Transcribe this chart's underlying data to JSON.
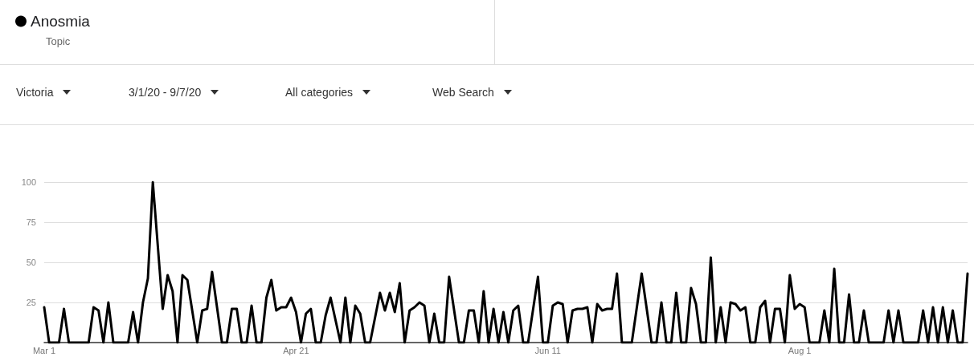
{
  "chart_data": {
    "type": "line",
    "subtitle": "Topic",
    "annotations": [
      "Victoria",
      "3/1/20 - 9/7/20",
      "All categories",
      "Web Search"
    ],
    "x": [
      "--03-01",
      "--03-02",
      "--03-04",
      "--03-05",
      "--03-06",
      "--03-10",
      "--03-11",
      "--03-12",
      "--03-13",
      "--03-14",
      "--03-15",
      "--03-18",
      "--03-19",
      "--03-20",
      "--03-21",
      "--03-22",
      "--03-23",
      "--03-25",
      "--03-26",
      "--03-27",
      "--03-28",
      "--03-29",
      "--03-30",
      "--04-01",
      "--04-02",
      "--04-03",
      "--04-04",
      "--04-06",
      "--04-07",
      "--04-08",
      "--04-09",
      "--04-10",
      "--04-11",
      "--04-12",
      "--04-13",
      "--04-14",
      "--04-15",
      "--04-16",
      "--04-17",
      "--04-18",
      "--04-19",
      "--04-20",
      "--04-21",
      "--04-22",
      "--04-23",
      "--04-24",
      "--04-25",
      "--04-26",
      "--04-27",
      "--04-28",
      "--04-30",
      "--05-01",
      "--05-02",
      "--05-03",
      "--05-04",
      "--05-05",
      "--05-06",
      "--05-08",
      "--05-09",
      "--05-10",
      "--05-11",
      "--05-12",
      "--05-13",
      "--05-14",
      "--05-15",
      "--05-16",
      "--05-17",
      "--05-18",
      "--05-19",
      "--05-20",
      "--05-21",
      "--05-22",
      "--05-24",
      "--05-25",
      "--05-26",
      "--05-27",
      "--05-28",
      "--05-29",
      "--05-30",
      "--05-31",
      "--06-01",
      "--06-02",
      "--06-03",
      "--06-04",
      "--06-05",
      "--06-06",
      "--06-07",
      "--06-09",
      "--06-10",
      "--06-11",
      "--06-12",
      "--06-13",
      "--06-14",
      "--06-15",
      "--06-16",
      "--06-17",
      "--06-18",
      "--06-19",
      "--06-20",
      "--06-21",
      "--06-22",
      "--06-23",
      "--06-24",
      "--06-25",
      "--06-26",
      "--06-28",
      "--06-30",
      "--07-02",
      "--07-03",
      "--07-04",
      "--07-05",
      "--07-06",
      "--07-07",
      "--07-08",
      "--07-09",
      "--07-10",
      "--07-11",
      "--07-12",
      "--07-13",
      "--07-14",
      "--07-15",
      "--07-16",
      "--07-17",
      "--07-18",
      "--07-19",
      "--07-20",
      "--07-21",
      "--07-22",
      "--07-23",
      "--07-24",
      "--07-25",
      "--07-26",
      "--07-27",
      "--07-28",
      "--07-29",
      "--07-30",
      "--07-31",
      "--08-01",
      "--08-02",
      "--08-03",
      "--08-05",
      "--08-06",
      "--08-07",
      "--08-08",
      "--08-09",
      "--08-10",
      "--08-11",
      "--08-12",
      "--08-13",
      "--08-14",
      "--08-15",
      "--08-18",
      "--08-19",
      "--08-20",
      "--08-21",
      "--08-22",
      "--08-25",
      "--08-26",
      "--08-27",
      "--08-28",
      "--08-29",
      "--08-30",
      "--08-31",
      "--09-01",
      "--09-02",
      "--09-03",
      "--09-04"
    ],
    "series": [
      {
        "name": "Anosmia",
        "color": "#000000",
        "values": [
          22,
          0,
          0,
          21,
          0,
          0,
          22,
          20,
          0,
          25,
          0,
          0,
          19,
          0,
          25,
          40,
          100,
          21,
          42,
          32,
          0,
          42,
          39,
          0,
          20,
          21,
          44,
          0,
          0,
          21,
          21,
          0,
          0,
          23,
          0,
          0,
          28,
          39,
          20,
          22,
          22,
          28,
          19,
          0,
          18,
          21,
          0,
          0,
          17,
          28,
          0,
          28,
          0,
          23,
          18,
          0,
          0,
          31,
          20,
          31,
          19,
          37,
          0,
          20,
          22,
          25,
          23,
          0,
          18,
          0,
          0,
          41,
          0,
          0,
          20,
          20,
          0,
          32,
          0,
          21,
          0,
          19,
          0,
          20,
          23,
          0,
          0,
          41,
          0,
          0,
          23,
          25,
          24,
          0,
          20,
          21,
          21,
          22,
          0,
          24,
          20,
          21,
          21,
          43,
          0,
          0,
          43,
          0,
          0,
          25,
          0,
          0,
          31,
          0,
          0,
          34,
          24,
          0,
          0,
          53,
          0,
          22,
          0,
          25,
          24,
          20,
          22,
          0,
          0,
          22,
          26,
          0,
          21,
          21,
          0,
          42,
          21,
          24,
          22,
          0,
          0,
          20,
          0,
          46,
          0,
          0,
          30,
          0,
          0,
          20,
          0,
          0,
          20,
          0,
          20,
          0,
          0,
          20,
          0,
          22,
          0,
          22,
          0,
          20,
          0,
          0,
          43
        ]
      }
    ],
    "xlim": [
      "--03-01",
      "--09-04"
    ],
    "xticks": [
      {
        "value": "--03-01",
        "label": "Mar 1"
      },
      {
        "value": "--04-21",
        "label": "Apr 21"
      },
      {
        "value": "--06-11",
        "label": "Jun 11"
      },
      {
        "value": "--08-01",
        "label": "Aug 1"
      }
    ],
    "ylim": [
      0,
      100
    ],
    "yticks": [
      25,
      50,
      75,
      100
    ],
    "grid": "y",
    "legend": "top left"
  }
}
